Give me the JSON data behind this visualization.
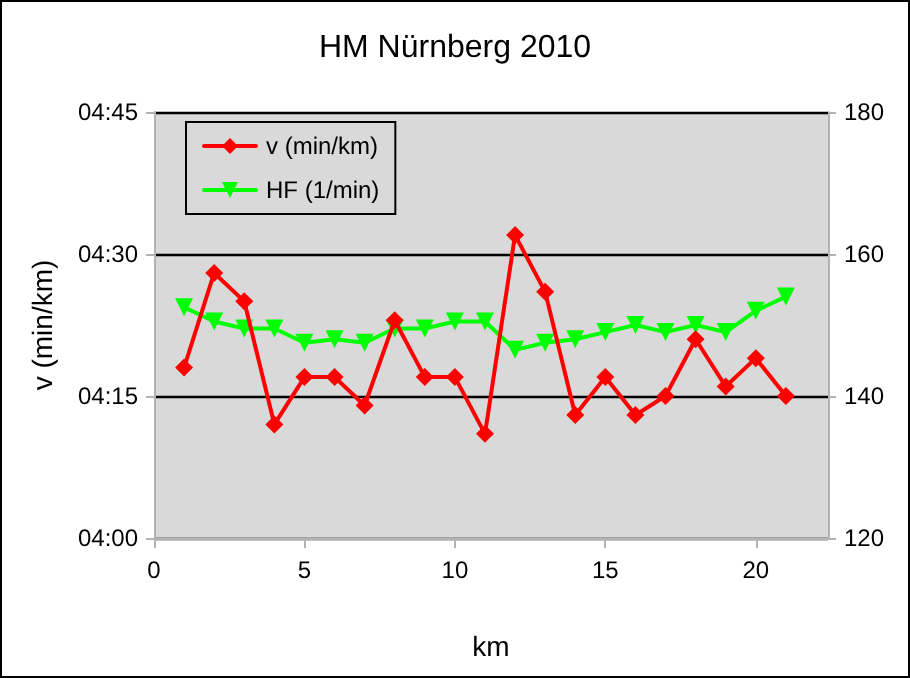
{
  "chart_data": {
    "type": "line",
    "title": "HM Nürnberg 2010",
    "xlabel": "km",
    "ylabel": "v (min/km)",
    "x": [
      1,
      2,
      3,
      4,
      5,
      6,
      7,
      8,
      9,
      10,
      11,
      12,
      13,
      14,
      15,
      16,
      17,
      18,
      19,
      20,
      21
    ],
    "series": [
      {
        "name": "v (min/km)",
        "color": "#ff0000",
        "marker": "diamond",
        "values": [
          258,
          268,
          265,
          252,
          257,
          257,
          254,
          263,
          257,
          257,
          251,
          272,
          266,
          253,
          257,
          253,
          255,
          261,
          256,
          259,
          255
        ]
      },
      {
        "name": "HF (1/min)",
        "color": "#00ff00",
        "marker": "triangle",
        "axis": "y2",
        "values": [
          152.5,
          150.5,
          149.5,
          149.5,
          147.5,
          148,
          147.5,
          149.5,
          149.5,
          150.5,
          150.5,
          146.5,
          147.5,
          148,
          149,
          150,
          149,
          150,
          149,
          152,
          154
        ]
      }
    ],
    "xlim": [
      0,
      22.4
    ],
    "xticks": [
      0,
      5,
      10,
      15,
      20
    ],
    "ylim": [
      240,
      285
    ],
    "yticks": [
      {
        "value": 240,
        "label": "04:00"
      },
      {
        "value": 255,
        "label": "04:15"
      },
      {
        "value": 270,
        "label": "04:30"
      },
      {
        "value": 285,
        "label": "04:45"
      }
    ],
    "y2lim": [
      120,
      180
    ],
    "y2ticks": [
      120,
      140,
      160,
      180
    ],
    "grid": "y",
    "legend": "top left"
  }
}
